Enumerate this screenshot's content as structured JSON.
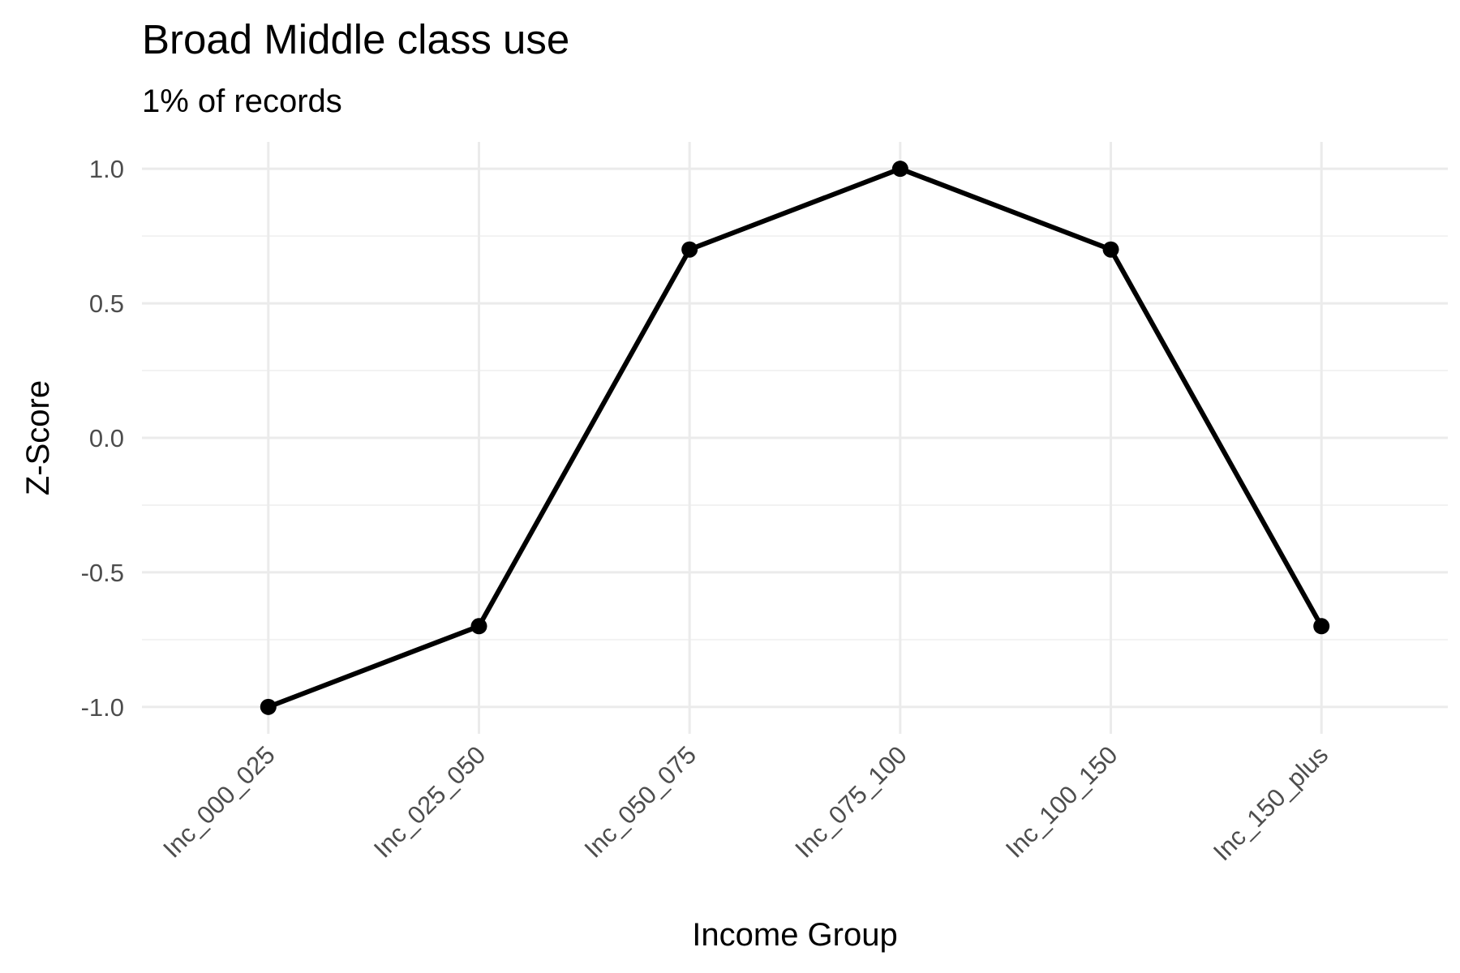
{
  "chart_data": {
    "type": "line",
    "title": "Broad Middle class use",
    "subtitle": "1% of records",
    "xlabel": "Income Group",
    "ylabel": "Z-Score",
    "categories": [
      "Inc_000_025",
      "Inc_025_050",
      "Inc_050_075",
      "Inc_075_100",
      "Inc_100_150",
      "Inc_150_plus"
    ],
    "series": [
      {
        "values": [
          -1.0,
          -0.7,
          0.7,
          1.0,
          0.7,
          -0.7
        ]
      }
    ],
    "ylim": [
      -1.1,
      1.1
    ],
    "yticks": [
      "-1.0",
      "-0.5",
      "0.0",
      "0.5",
      "1.0"
    ],
    "ytick_values": [
      -1.0,
      -0.5,
      0.0,
      0.5,
      1.0
    ],
    "grid": true,
    "legend": "none",
    "colors": {
      "line": "#000000",
      "grid": "#ebebeb"
    }
  }
}
